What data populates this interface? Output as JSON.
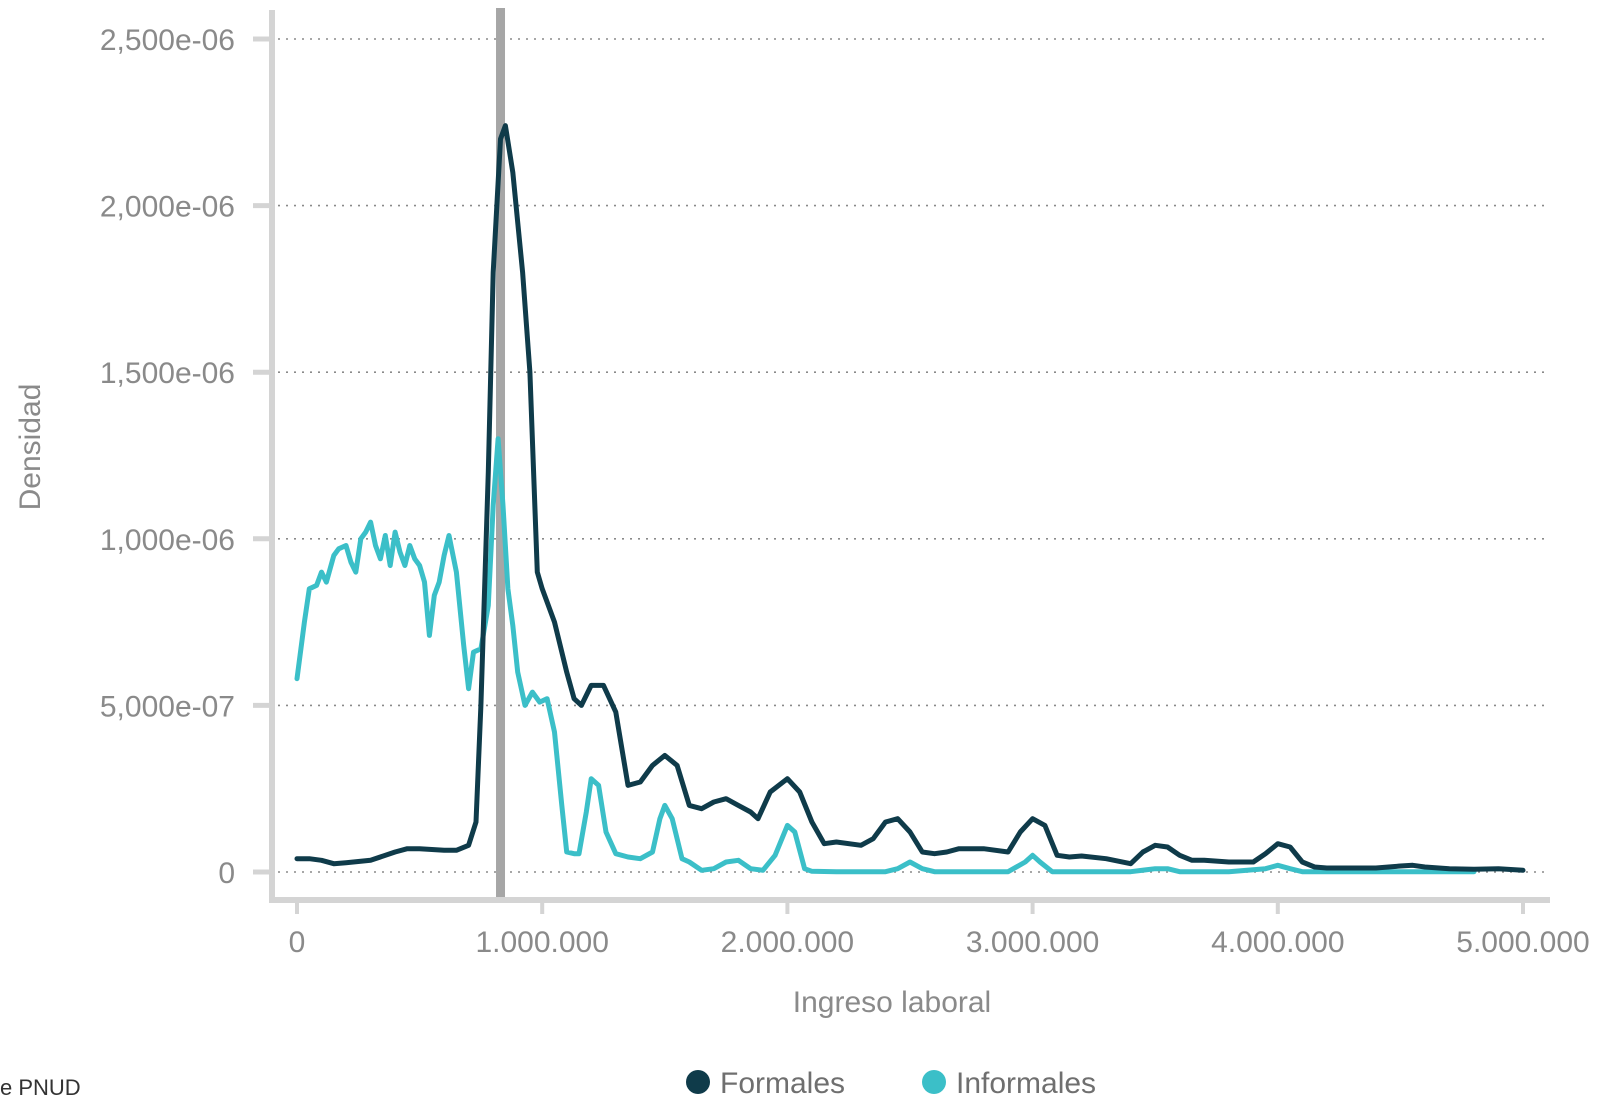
{
  "colors": {
    "formales": "#0f3b4a",
    "informales": "#3bbfc8",
    "reference_line": "#a6a6a6",
    "axis": "#d4d4d4",
    "grid": "#8a8a8a"
  },
  "source_note": "e PNUD",
  "chart_data": {
    "type": "line",
    "title": "",
    "xlabel": "Ingreso laboral",
    "ylabel": "Densidad",
    "xlim": [
      0,
      5000000
    ],
    "ylim": [
      0,
      2.5e-06
    ],
    "grid": "horizontal-dotted",
    "legend": "bottom-center",
    "x_ticks": [
      0,
      1000000,
      2000000,
      3000000,
      4000000,
      5000000
    ],
    "x_tick_labels": [
      "0",
      "1.000.000",
      "2.000.000",
      "3.000.000",
      "4.000.000",
      "5.000.000"
    ],
    "y_ticks": [
      0,
      5e-07,
      1e-06,
      1.5e-06,
      2e-06,
      2.5e-06
    ],
    "y_tick_labels": [
      "0",
      "5,000e-07",
      "1,000e-06",
      "1,500e-06",
      "2,000e-06",
      "2,500e-06"
    ],
    "reference_line_x": 830000,
    "series": [
      {
        "name": "Formales",
        "x": [
          0,
          50000,
          100000,
          150000,
          200000,
          300000,
          400000,
          450000,
          500000,
          600000,
          650000,
          700000,
          730000,
          750000,
          780000,
          800000,
          830000,
          850000,
          880000,
          920000,
          950000,
          980000,
          1000000,
          1050000,
          1100000,
          1130000,
          1160000,
          1200000,
          1250000,
          1300000,
          1350000,
          1400000,
          1450000,
          1500000,
          1550000,
          1600000,
          1650000,
          1700000,
          1750000,
          1800000,
          1850000,
          1880000,
          1930000,
          2000000,
          2050000,
          2100000,
          2150000,
          2200000,
          2300000,
          2350000,
          2400000,
          2450000,
          2500000,
          2550000,
          2600000,
          2650000,
          2700000,
          2800000,
          2900000,
          2950000,
          3000000,
          3050000,
          3100000,
          3150000,
          3200000,
          3300000,
          3400000,
          3450000,
          3500000,
          3550000,
          3600000,
          3650000,
          3700000,
          3800000,
          3900000,
          3950000,
          4000000,
          4050000,
          4100000,
          4150000,
          4200000,
          4300000,
          4400000,
          4500000,
          4550000,
          4600000,
          4700000,
          4800000,
          4900000,
          5000000
        ],
        "values": [
          4e-08,
          4e-08,
          3.5e-08,
          2.5e-08,
          2.8e-08,
          3.5e-08,
          6e-08,
          7e-08,
          7e-08,
          6.5e-08,
          6.5e-08,
          8e-08,
          1.5e-07,
          5e-07,
          1.2e-06,
          1.8e-06,
          2.2e-06,
          2.24e-06,
          2.1e-06,
          1.8e-06,
          1.5e-06,
          9e-07,
          8.5e-07,
          7.5e-07,
          6e-07,
          5.2e-07,
          5e-07,
          5.6e-07,
          5.6e-07,
          4.8e-07,
          2.6e-07,
          2.7e-07,
          3.2e-07,
          3.5e-07,
          3.2e-07,
          2e-07,
          1.9e-07,
          2.1e-07,
          2.2e-07,
          2e-07,
          1.8e-07,
          1.6e-07,
          2.4e-07,
          2.8e-07,
          2.4e-07,
          1.5e-07,
          8.5e-08,
          9e-08,
          8e-08,
          1e-07,
          1.5e-07,
          1.6e-07,
          1.2e-07,
          6e-08,
          5.5e-08,
          6e-08,
          7e-08,
          7e-08,
          6e-08,
          1.2e-07,
          1.6e-07,
          1.4e-07,
          5e-08,
          4.5e-08,
          4.8e-08,
          4e-08,
          2.5e-08,
          6e-08,
          8e-08,
          7.5e-08,
          5e-08,
          3.5e-08,
          3.5e-08,
          3e-08,
          3e-08,
          5.5e-08,
          8.5e-08,
          7.5e-08,
          3e-08,
          1.5e-08,
          1.2e-08,
          1.2e-08,
          1.2e-08,
          1.8e-08,
          2e-08,
          1.5e-08,
          1e-08,
          8e-09,
          1e-08,
          5e-09
        ]
      },
      {
        "name": "Informales",
        "x": [
          0,
          30000,
          50000,
          80000,
          100000,
          120000,
          150000,
          170000,
          200000,
          220000,
          240000,
          260000,
          280000,
          300000,
          320000,
          340000,
          360000,
          380000,
          400000,
          420000,
          440000,
          460000,
          480000,
          500000,
          520000,
          540000,
          560000,
          580000,
          600000,
          620000,
          650000,
          680000,
          700000,
          720000,
          750000,
          780000,
          800000,
          820000,
          840000,
          860000,
          880000,
          900000,
          930000,
          960000,
          990000,
          1020000,
          1050000,
          1080000,
          1100000,
          1130000,
          1150000,
          1180000,
          1200000,
          1230000,
          1260000,
          1300000,
          1350000,
          1400000,
          1450000,
          1480000,
          1500000,
          1530000,
          1570000,
          1600000,
          1650000,
          1700000,
          1750000,
          1800000,
          1850000,
          1900000,
          1950000,
          2000000,
          2030000,
          2070000,
          2100000,
          2200000,
          2300000,
          2400000,
          2450000,
          2500000,
          2550000,
          2600000,
          2700000,
          2800000,
          2900000,
          2970000,
          3000000,
          3030000,
          3080000,
          3200000,
          3400000,
          3500000,
          3550000,
          3600000,
          3800000,
          3950000,
          4000000,
          4050000,
          4100000,
          4300000,
          4600000,
          4800000
        ],
        "values": [
          5.8e-07,
          7.5e-07,
          8.5e-07,
          8.6e-07,
          9e-07,
          8.7e-07,
          9.5e-07,
          9.7e-07,
          9.8e-07,
          9.3e-07,
          9e-07,
          1e-06,
          1.02e-06,
          1.05e-06,
          9.8e-07,
          9.4e-07,
          1.01e-06,
          9.2e-07,
          1.02e-06,
          9.6e-07,
          9.2e-07,
          9.8e-07,
          9.4e-07,
          9.2e-07,
          8.7e-07,
          7.1e-07,
          8.3e-07,
          8.7e-07,
          9.5e-07,
          1.01e-06,
          9e-07,
          6.8e-07,
          5.5e-07,
          6.6e-07,
          6.7e-07,
          8e-07,
          1.1e-06,
          1.3e-06,
          1.1e-06,
          8.5e-07,
          7.4e-07,
          6e-07,
          5e-07,
          5.4e-07,
          5.1e-07,
          5.2e-07,
          4.2e-07,
          2e-07,
          6e-08,
          5.5e-08,
          5.5e-08,
          1.8e-07,
          2.8e-07,
          2.6e-07,
          1.2e-07,
          5.5e-08,
          4.5e-08,
          4e-08,
          6e-08,
          1.6e-07,
          2e-07,
          1.6e-07,
          4e-08,
          3e-08,
          5e-09,
          1e-08,
          3e-08,
          3.5e-08,
          1e-08,
          5e-09,
          5e-08,
          1.4e-07,
          1.2e-07,
          1e-08,
          2e-09,
          1e-09,
          1e-09,
          1e-09,
          1e-08,
          3e-08,
          1e-08,
          1e-09,
          1e-09,
          1e-09,
          1e-09,
          3e-08,
          5e-08,
          3e-08,
          1e-09,
          1e-09,
          1e-09,
          1e-08,
          1e-08,
          1e-09,
          1e-09,
          1e-08,
          2e-08,
          1e-08,
          1e-09,
          1e-09,
          1e-09,
          1e-09
        ]
      }
    ]
  }
}
